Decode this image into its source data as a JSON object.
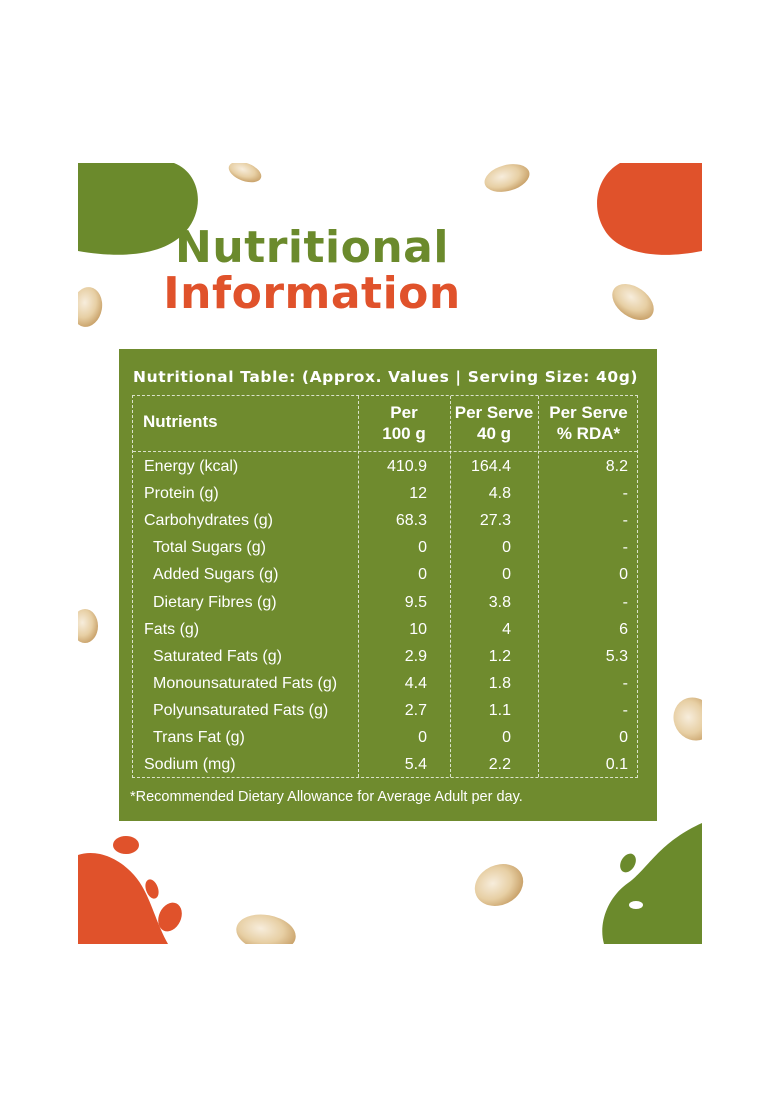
{
  "title": {
    "line1": "Nutritional",
    "line2": "Information"
  },
  "table": {
    "heading": "Nutritional Table: (Approx. Values | Serving Size: 40g)",
    "columns": {
      "nutrients": "Nutrients",
      "per100_l1": "Per",
      "per100_l2": "100 g",
      "serve_l1": "Per Serve",
      "serve_l2": "40 g",
      "rda_l1": "Per Serve",
      "rda_l2": "% RDA*"
    },
    "rows": [
      {
        "name": "Energy (kcal)",
        "per100": "410.9",
        "serve": "164.4",
        "rda": "8.2",
        "sub": false
      },
      {
        "name": "Protein (g)",
        "per100": "12",
        "serve": "4.8",
        "rda": "-",
        "sub": false
      },
      {
        "name": "Carbohydrates (g)",
        "per100": "68.3",
        "serve": "27.3",
        "rda": "-",
        "sub": false
      },
      {
        "name": "Total Sugars (g)",
        "per100": "0",
        "serve": "0",
        "rda": "-",
        "sub": true
      },
      {
        "name": "Added Sugars (g)",
        "per100": "0",
        "serve": "0",
        "rda": "0",
        "sub": true
      },
      {
        "name": "Dietary Fibres (g)",
        "per100": "9.5",
        "serve": "3.8",
        "rda": "-",
        "sub": true
      },
      {
        "name": "Fats (g)",
        "per100": "10",
        "serve": "4",
        "rda": "6",
        "sub": false
      },
      {
        "name": "Saturated Fats (g)",
        "per100": "2.9",
        "serve": "1.2",
        "rda": "5.3",
        "sub": true
      },
      {
        "name": "Monounsaturated Fats (g)",
        "per100": "4.4",
        "serve": "1.8",
        "rda": "-",
        "sub": true
      },
      {
        "name": "Polyunsaturated Fats (g)",
        "per100": "2.7",
        "serve": "1.1",
        "rda": "-",
        "sub": true
      },
      {
        "name": "Trans Fat (g)",
        "per100": "0",
        "serve": "0",
        "rda": "0",
        "sub": true
      },
      {
        "name": "Sodium (mg)",
        "per100": "5.4",
        "serve": "2.2",
        "rda": "0.1",
        "sub": false
      }
    ],
    "footnote": "*Recommended Dietary Allowance for Average Adult per day."
  },
  "colors": {
    "green": "#6f8b2e",
    "title_green": "#6b8a2c",
    "orange": "#e0522b"
  }
}
